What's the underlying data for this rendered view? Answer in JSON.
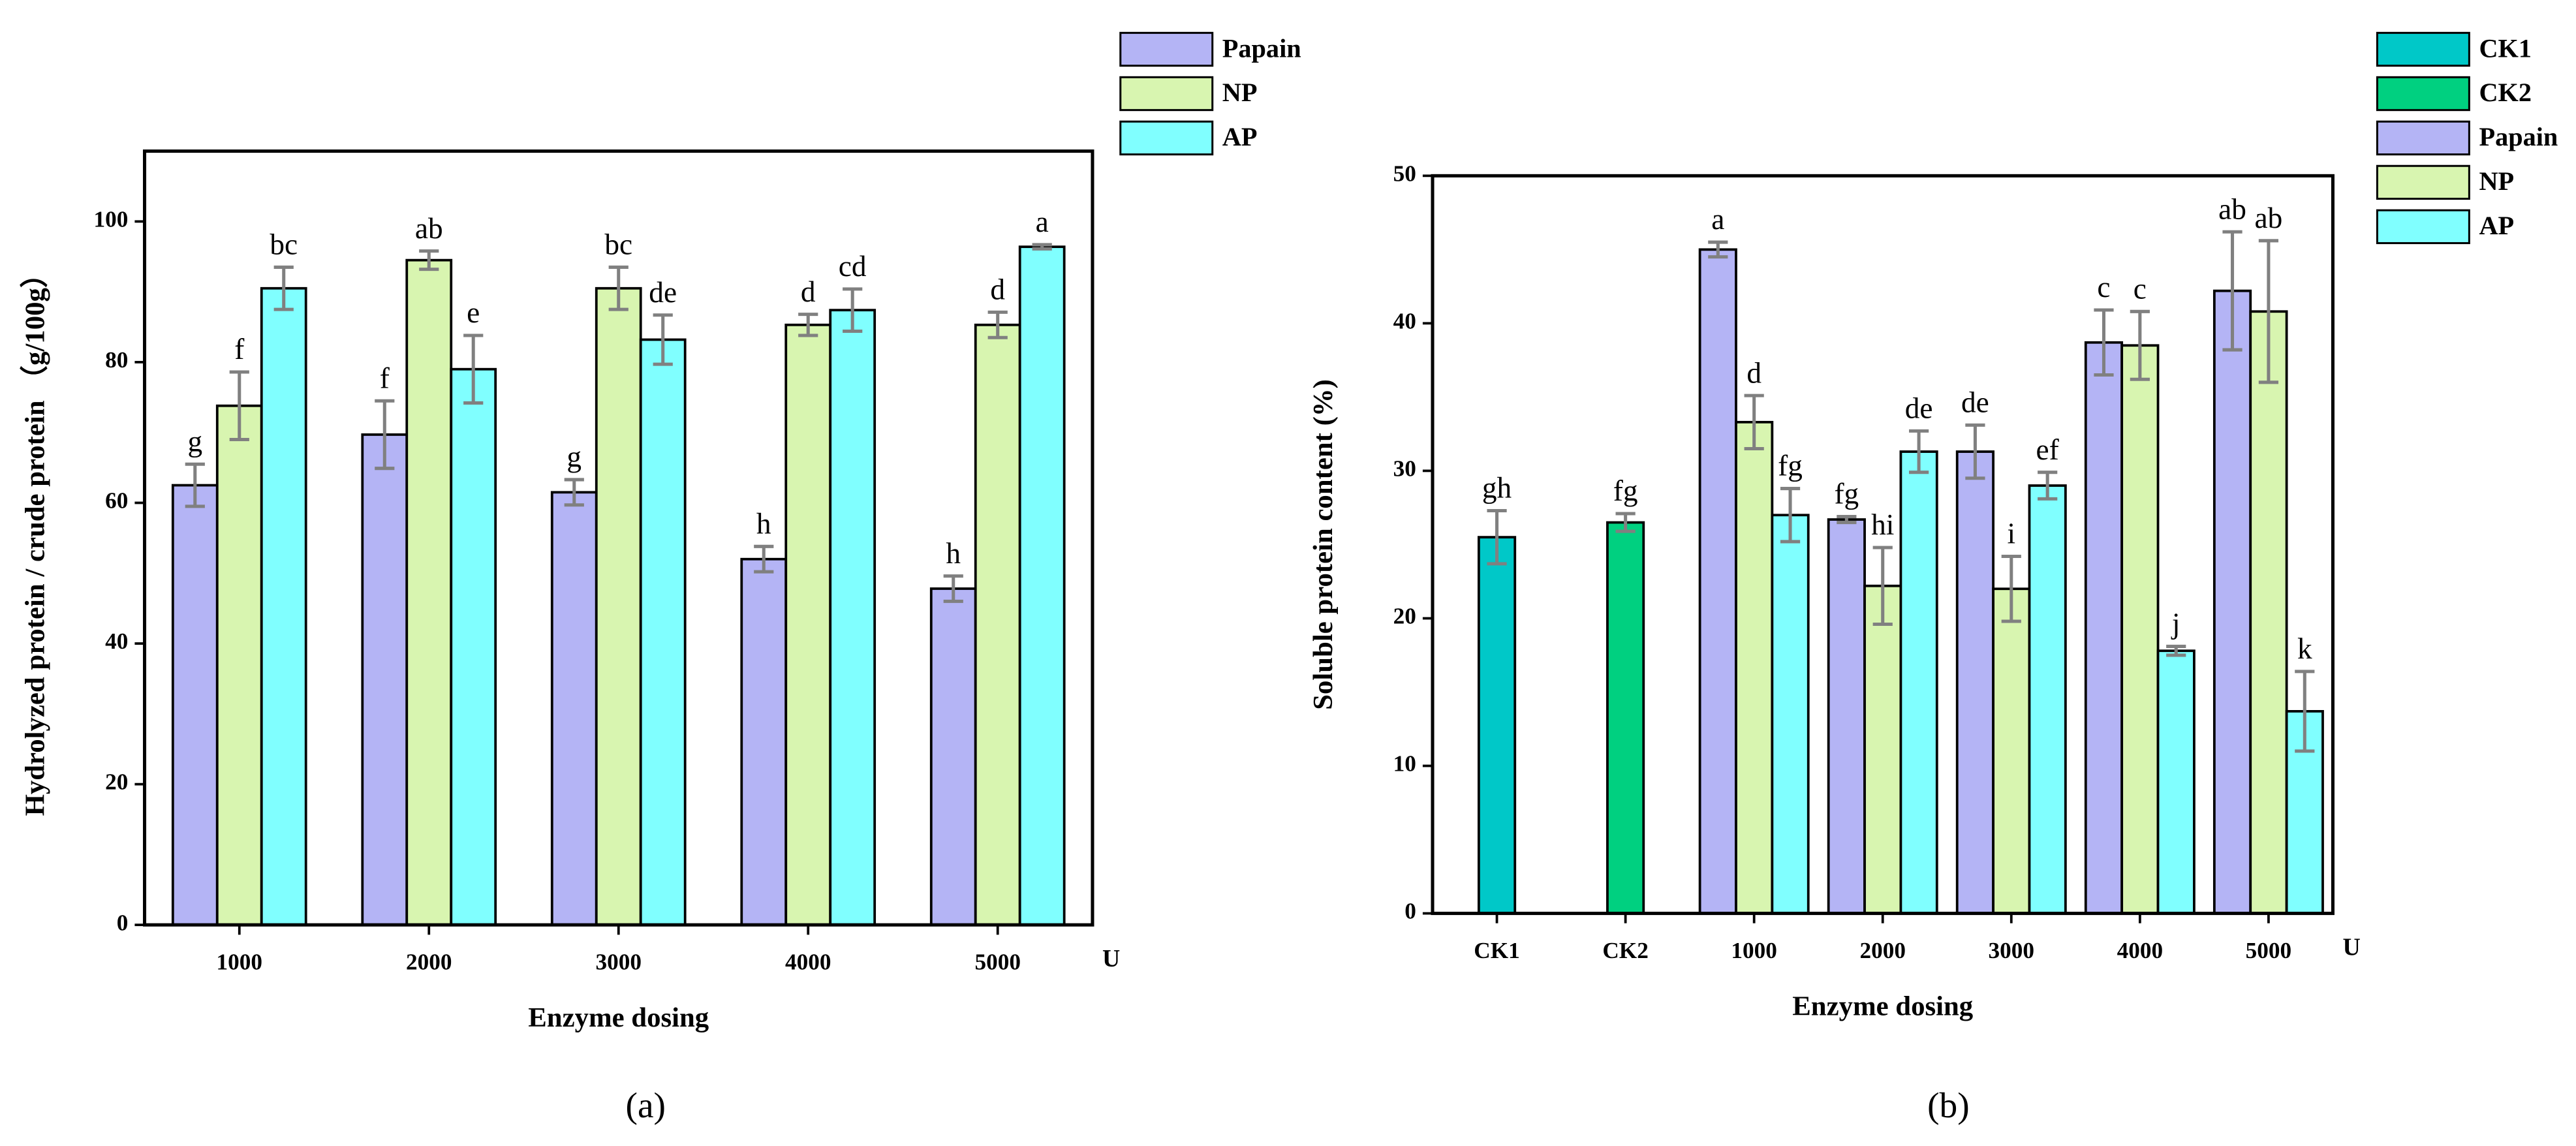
{
  "chart_data": [
    {
      "type": "bar",
      "caption": "(a)",
      "xlabel": "Enzyme dosing",
      "x_unit": "U",
      "ylabel": "Hydrolyzed protein / crude protein （g/100g）",
      "categories": [
        "1000",
        "2000",
        "3000",
        "4000",
        "5000"
      ],
      "ylim": [
        0,
        110
      ],
      "yticks": [
        0,
        20,
        40,
        60,
        80,
        100
      ],
      "series": [
        {
          "name": "Papain",
          "color": "#b4b4f5",
          "values": [
            62.5,
            69.7,
            61.5,
            52,
            47.8
          ],
          "errors": [
            3,
            4.8,
            1.8,
            1.8,
            1.8
          ],
          "letters": [
            "g",
            "f",
            "g",
            "h",
            "h"
          ]
        },
        {
          "name": "NP",
          "color": "#d8f5b0",
          "values": [
            73.8,
            94.5,
            90.5,
            85.3,
            85.3
          ],
          "errors": [
            4.8,
            1.3,
            3,
            1.5,
            1.8
          ],
          "letters": [
            "f",
            "ab",
            "bc",
            "d",
            "d"
          ]
        },
        {
          "name": "AP",
          "color": "#80ffff",
          "values": [
            90.5,
            79,
            83.2,
            87.4,
            96.4
          ],
          "errors": [
            3,
            4.8,
            3.5,
            3,
            0.3
          ],
          "letters": [
            "bc",
            "e",
            "de",
            "cd",
            "a"
          ]
        }
      ]
    },
    {
      "type": "bar",
      "caption": "(b)",
      "xlabel": "Enzyme dosing",
      "x_unit": "U",
      "ylabel": "Soluble protein content (%)",
      "categories": [
        "CK1",
        "CK2",
        "1000",
        "2000",
        "3000",
        "4000",
        "5000"
      ],
      "ylim": [
        0,
        50
      ],
      "yticks": [
        0,
        10,
        20,
        30,
        40,
        50
      ],
      "series": [
        {
          "name": "CK1",
          "color": "#00c8c8",
          "values": [
            25.5,
            null,
            null,
            null,
            null,
            null,
            null
          ],
          "errors": [
            1.8,
            null,
            null,
            null,
            null,
            null,
            null
          ],
          "letters": [
            "gh",
            null,
            null,
            null,
            null,
            null,
            null
          ]
        },
        {
          "name": "CK2",
          "color": "#00d080",
          "values": [
            null,
            26.5,
            null,
            null,
            null,
            null,
            null
          ],
          "errors": [
            null,
            0.6,
            null,
            null,
            null,
            null,
            null
          ],
          "letters": [
            null,
            "fg",
            null,
            null,
            null,
            null,
            null
          ]
        },
        {
          "name": "Papain",
          "color": "#b4b4f5",
          "values": [
            null,
            null,
            45,
            26.7,
            31.3,
            38.7,
            42.2
          ],
          "errors": [
            null,
            null,
            0.5,
            0.2,
            1.8,
            2.2,
            4
          ],
          "letters": [
            null,
            null,
            "a",
            "fg",
            "de",
            "c",
            "ab"
          ]
        },
        {
          "name": "NP",
          "color": "#d8f5b0",
          "values": [
            null,
            null,
            33.3,
            22.2,
            22,
            38.5,
            40.8
          ],
          "errors": [
            null,
            null,
            1.8,
            2.6,
            2.2,
            2.3,
            4.8
          ],
          "letters": [
            null,
            null,
            "d",
            "hi",
            "i",
            "c",
            "ab"
          ]
        },
        {
          "name": "AP",
          "color": "#80ffff",
          "values": [
            null,
            null,
            27,
            31.3,
            29,
            17.8,
            13.7
          ],
          "errors": [
            null,
            null,
            1.8,
            1.4,
            0.9,
            0.3,
            2.7
          ],
          "letters": [
            null,
            null,
            "fg",
            "de",
            "ef",
            "j",
            "k"
          ]
        }
      ]
    }
  ]
}
